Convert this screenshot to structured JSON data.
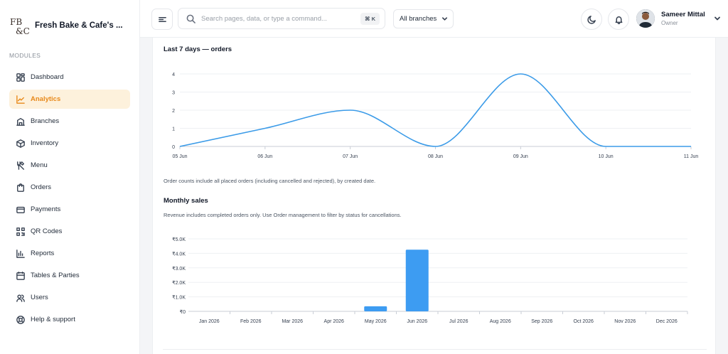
{
  "brand": {
    "name": "Fresh Bake & Cafe's ...",
    "logo_text": "FB&C"
  },
  "sidebar": {
    "section_title": "MODULES",
    "items": [
      {
        "label": "Dashboard",
        "icon": "dashboard-icon",
        "active": false
      },
      {
        "label": "Analytics",
        "icon": "analytics-icon",
        "active": true
      },
      {
        "label": "Branches",
        "icon": "branches-icon",
        "active": false
      },
      {
        "label": "Inventory",
        "icon": "inventory-icon",
        "active": false
      },
      {
        "label": "Menu",
        "icon": "menu-utensils-icon",
        "active": false
      },
      {
        "label": "Orders",
        "icon": "orders-icon",
        "active": false
      },
      {
        "label": "Payments",
        "icon": "payments-icon",
        "active": false
      },
      {
        "label": "QR Codes",
        "icon": "qr-code-icon",
        "active": false
      },
      {
        "label": "Reports",
        "icon": "reports-icon",
        "active": false
      },
      {
        "label": "Tables & Parties",
        "icon": "tables-icon",
        "active": false
      },
      {
        "label": "Users",
        "icon": "users-icon",
        "active": false
      },
      {
        "label": "Help & support",
        "icon": "help-icon",
        "active": false
      }
    ]
  },
  "header": {
    "search_placeholder": "Search pages, data, or type a command...",
    "search_shortcut": "⌘ K",
    "branch_select": "All branches",
    "user": {
      "name": "Sameer Mittal",
      "role": "Owner"
    }
  },
  "colors": {
    "accent": "#e8891a",
    "accent_bg": "#fdf1dc",
    "chart_line": "#3b9be8",
    "chart_bar": "#3d9cf2"
  },
  "orders_section": {
    "title": "Last 7 days — orders",
    "note": "Order counts include all placed orders (including cancelled and rejected), by created date."
  },
  "sales_section": {
    "title": "Monthly sales",
    "note": "Revenue includes completed orders only. Use Order management to filter by status for cancellations."
  },
  "chart_data": [
    {
      "type": "line",
      "title": "Last 7 days — orders",
      "categories": [
        "05 Jun",
        "06 Jun",
        "07 Jun",
        "08 Jun",
        "09 Jun",
        "10 Jun",
        "11 Jun"
      ],
      "values": [
        0,
        1,
        2,
        0,
        4,
        0,
        0
      ],
      "ylim": [
        0,
        4
      ],
      "yticks": [
        "0",
        "1",
        "2",
        "3",
        "4"
      ],
      "grid": true,
      "smooth": true
    },
    {
      "type": "bar",
      "title": "Monthly sales",
      "categories": [
        "Jan 2026",
        "Feb 2026",
        "Mar 2026",
        "Apr 2026",
        "May 2026",
        "Jun 2026",
        "Jul 2026",
        "Aug 2026",
        "Sep 2026",
        "Oct 2026",
        "Nov 2026",
        "Dec 2026"
      ],
      "values": [
        0,
        0,
        0,
        0,
        350,
        4250,
        0,
        0,
        0,
        0,
        0,
        0
      ],
      "ylim": [
        0,
        5000
      ],
      "yticks": [
        "₹0",
        "₹1.0K",
        "₹2.0K",
        "₹3.0K",
        "₹4.0K",
        "₹5.0K"
      ],
      "grid": true
    }
  ]
}
